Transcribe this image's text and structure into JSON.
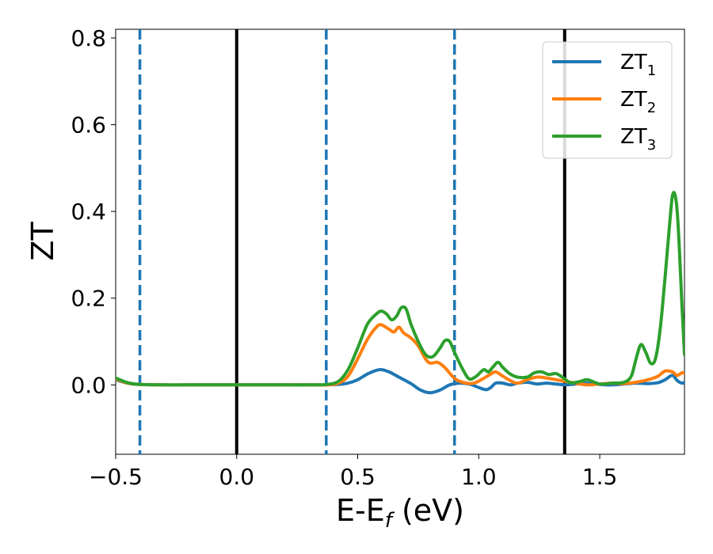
{
  "chart_data": {
    "type": "line",
    "xlabel": "E-E",
    "xlabel_sub": "f",
    "xlabel_unit": " (eV)",
    "ylabel": "ZT",
    "xlim": [
      -0.5,
      1.85
    ],
    "ylim": [
      -0.16,
      0.82
    ],
    "xticks": [
      -0.5,
      0.0,
      0.5,
      1.0,
      1.5
    ],
    "xtick_labels": [
      "−0.5",
      "0.0",
      "0.5",
      "1.0",
      "1.5"
    ],
    "yticks": [
      0.0,
      0.2,
      0.4,
      0.6,
      0.8
    ],
    "ytick_labels": [
      "0.0",
      "0.2",
      "0.4",
      "0.6",
      "0.8"
    ],
    "grid": false,
    "legend_position": "top-right",
    "vlines": [
      {
        "x": -0.4,
        "style": "dashed",
        "color": "#1f77b4"
      },
      {
        "x": 0.0,
        "style": "solid",
        "color": "#000000"
      },
      {
        "x": 0.37,
        "style": "dashed",
        "color": "#1f77b4"
      },
      {
        "x": 0.9,
        "style": "dashed",
        "color": "#1f77b4"
      },
      {
        "x": 1.355,
        "style": "solid",
        "color": "#000000"
      }
    ],
    "series": [
      {
        "name": "ZT",
        "name_sub": "1",
        "color": "#1f77b4",
        "x": [
          -0.5,
          -0.45,
          -0.4,
          -0.3,
          -0.2,
          0.0,
          0.2,
          0.3,
          0.37,
          0.42,
          0.46,
          0.5,
          0.54,
          0.58,
          0.6,
          0.63,
          0.67,
          0.72,
          0.76,
          0.8,
          0.84,
          0.88,
          0.92,
          0.96,
          1.0,
          1.03,
          1.05,
          1.07,
          1.1,
          1.13,
          1.16,
          1.2,
          1.24,
          1.28,
          1.32,
          1.36,
          1.4,
          1.45,
          1.5,
          1.55,
          1.6,
          1.65,
          1.7,
          1.74,
          1.77,
          1.8,
          1.82,
          1.84,
          1.85
        ],
        "y": [
          0.012,
          0.004,
          0.001,
          0.0,
          0.0,
          0.0,
          0.0,
          0.0,
          0.0,
          0.001,
          0.004,
          0.012,
          0.025,
          0.034,
          0.035,
          0.03,
          0.018,
          0.003,
          -0.012,
          -0.018,
          -0.012,
          0.0,
          0.004,
          0.002,
          -0.006,
          -0.011,
          -0.006,
          0.004,
          0.004,
          0.0,
          0.004,
          0.006,
          0.002,
          0.004,
          0.002,
          0.0,
          0.002,
          0.004,
          0.001,
          0.0,
          0.002,
          0.004,
          0.003,
          0.005,
          0.012,
          0.022,
          0.01,
          0.004,
          0.006
        ]
      },
      {
        "name": "ZT",
        "name_sub": "2",
        "color": "#ff7f0e",
        "x": [
          -0.5,
          -0.45,
          -0.4,
          -0.3,
          -0.2,
          0.0,
          0.2,
          0.3,
          0.37,
          0.42,
          0.46,
          0.5,
          0.54,
          0.58,
          0.6,
          0.63,
          0.65,
          0.67,
          0.69,
          0.72,
          0.75,
          0.78,
          0.8,
          0.83,
          0.86,
          0.9,
          0.94,
          0.98,
          1.02,
          1.05,
          1.07,
          1.1,
          1.13,
          1.16,
          1.2,
          1.24,
          1.28,
          1.32,
          1.36,
          1.4,
          1.45,
          1.5,
          1.55,
          1.6,
          1.65,
          1.7,
          1.74,
          1.77,
          1.8,
          1.82,
          1.84,
          1.85
        ],
        "y": [
          0.014,
          0.004,
          0.001,
          0.0,
          0.0,
          0.0,
          0.0,
          0.0,
          0.0,
          0.004,
          0.02,
          0.06,
          0.105,
          0.135,
          0.138,
          0.128,
          0.122,
          0.133,
          0.12,
          0.108,
          0.09,
          0.06,
          0.05,
          0.052,
          0.04,
          0.015,
          0.005,
          0.004,
          0.015,
          0.025,
          0.03,
          0.02,
          0.01,
          0.004,
          0.012,
          0.018,
          0.016,
          0.012,
          0.008,
          0.004,
          0.0,
          0.002,
          0.004,
          0.003,
          0.006,
          0.012,
          0.02,
          0.032,
          0.03,
          0.022,
          0.028,
          0.026
        ]
      },
      {
        "name": "ZT",
        "name_sub": "3",
        "color": "#2ca02c",
        "x": [
          -0.5,
          -0.45,
          -0.4,
          -0.3,
          -0.2,
          0.0,
          0.2,
          0.3,
          0.37,
          0.42,
          0.46,
          0.5,
          0.54,
          0.58,
          0.6,
          0.62,
          0.64,
          0.66,
          0.68,
          0.7,
          0.72,
          0.75,
          0.78,
          0.81,
          0.84,
          0.86,
          0.88,
          0.9,
          0.93,
          0.96,
          0.99,
          1.02,
          1.04,
          1.06,
          1.08,
          1.1,
          1.13,
          1.16,
          1.2,
          1.23,
          1.26,
          1.29,
          1.32,
          1.35,
          1.38,
          1.42,
          1.45,
          1.5,
          1.55,
          1.6,
          1.63,
          1.65,
          1.67,
          1.69,
          1.71,
          1.73,
          1.75,
          1.77,
          1.79,
          1.8,
          1.81,
          1.82,
          1.83,
          1.84,
          1.85
        ],
        "y": [
          0.016,
          0.005,
          0.001,
          0.0,
          0.0,
          0.0,
          0.0,
          0.0,
          0.001,
          0.008,
          0.035,
          0.085,
          0.14,
          0.165,
          0.17,
          0.163,
          0.15,
          0.158,
          0.178,
          0.175,
          0.14,
          0.1,
          0.07,
          0.065,
          0.085,
          0.102,
          0.1,
          0.075,
          0.04,
          0.014,
          0.02,
          0.035,
          0.03,
          0.042,
          0.052,
          0.04,
          0.025,
          0.018,
          0.018,
          0.028,
          0.03,
          0.024,
          0.026,
          0.016,
          0.005,
          0.008,
          0.012,
          0.002,
          0.004,
          0.006,
          0.02,
          0.06,
          0.093,
          0.075,
          0.05,
          0.06,
          0.13,
          0.25,
          0.38,
          0.435,
          0.44,
          0.4,
          0.3,
          0.18,
          0.07
        ]
      }
    ]
  }
}
